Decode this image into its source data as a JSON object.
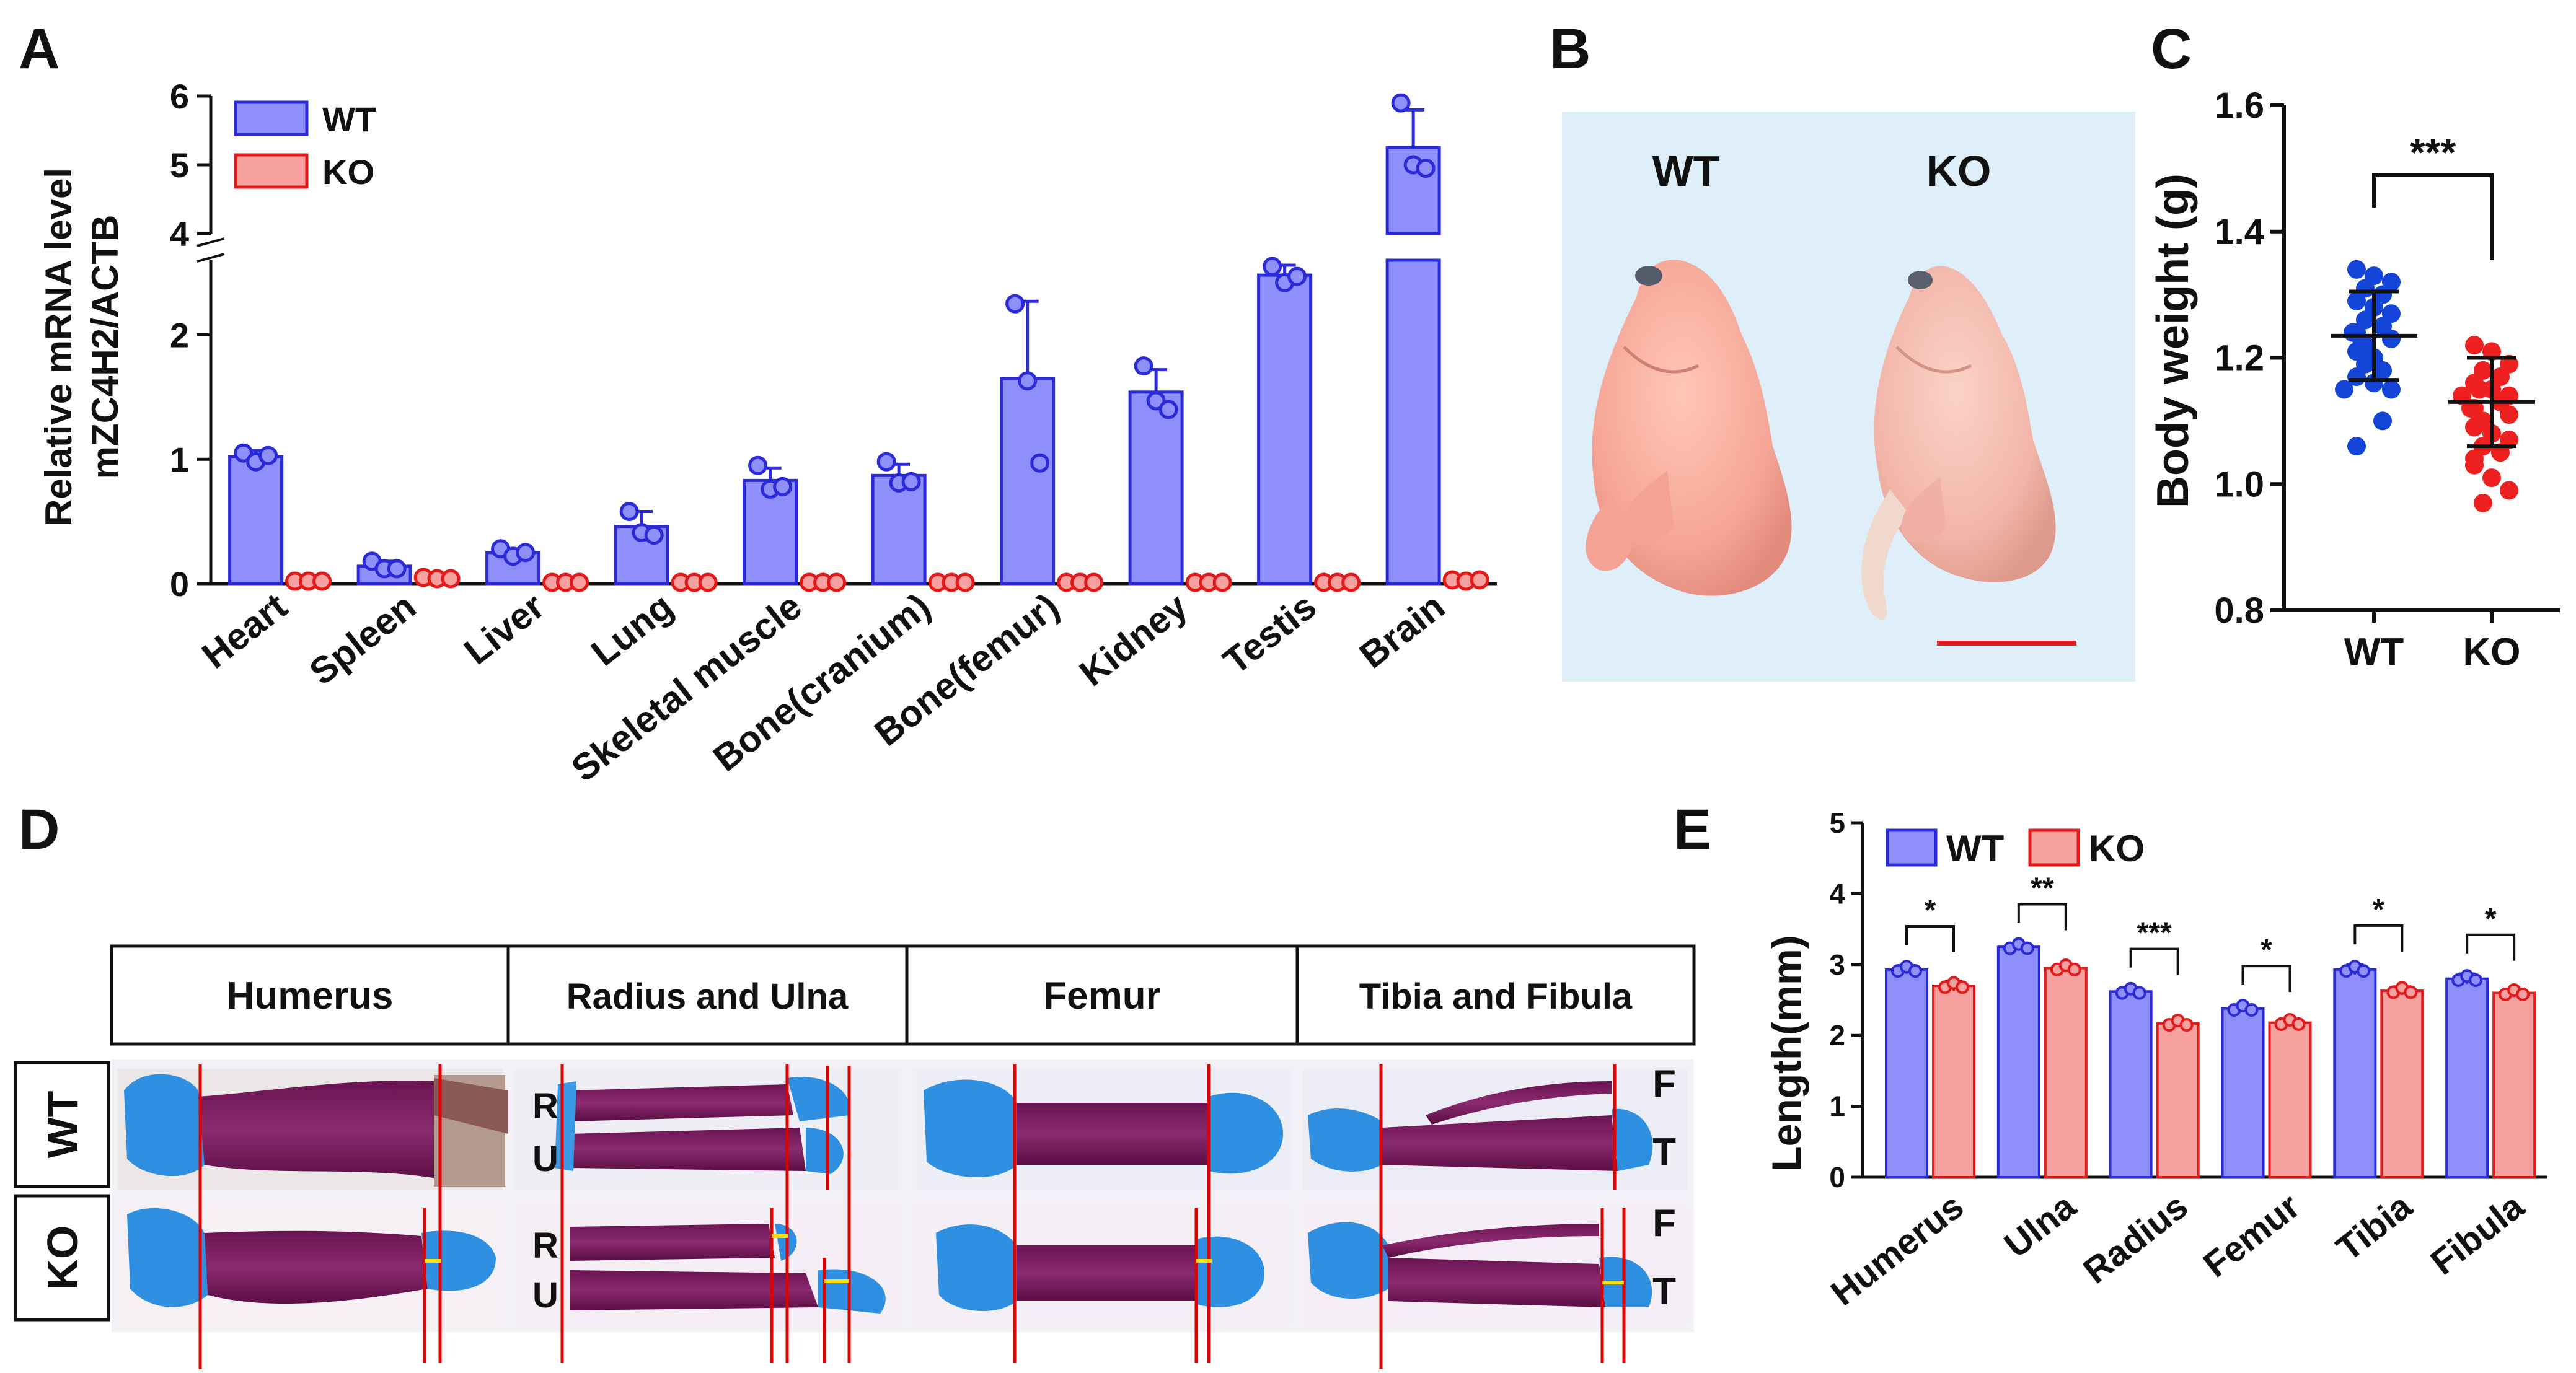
{
  "panel_labels": {
    "a": "A",
    "b": "B",
    "c": "C",
    "d": "D",
    "e": "E"
  },
  "colors": {
    "wt_fill": "#8f8ffb",
    "wt_edge": "#2a2ad8",
    "ko_fill": "#f7a0a0",
    "ko_edge": "#e41a1a",
    "scale_bar": "#e02020",
    "cut_line": "#e00000",
    "growth_plate_mark": "#ffe000"
  },
  "photo_b": {
    "wt_label": "WT",
    "ko_label": "KO"
  },
  "photo_d": {
    "columns": [
      "Humerus",
      "Radius and Ulna",
      "Femur",
      "Tibia and Fibula"
    ],
    "rows": [
      "WT",
      "KO"
    ],
    "ru_labels": [
      "R",
      "U",
      "R",
      "U"
    ],
    "ft_labels": [
      "F",
      "T",
      "F",
      "T"
    ]
  },
  "chart_data": [
    {
      "id": "A",
      "type": "bar",
      "ylabel_lines": [
        "Relative mRNA level",
        "mZC4H2/ACTB"
      ],
      "ylim_lower": [
        0,
        2.6
      ],
      "ylim_upper": [
        4,
        6
      ],
      "yticks_lower": [
        "0",
        "1",
        "2"
      ],
      "yticks_upper": [
        "4",
        "5",
        "6"
      ],
      "categories": [
        "Heart",
        "Spleen",
        "Liver",
        "Lung",
        "Skeletal muscle",
        "Bone(cranium)",
        "Bone(femur)",
        "Kidney",
        "Testis",
        "Brain"
      ],
      "legend": [
        "WT",
        "KO"
      ],
      "series": [
        {
          "name": "WT",
          "values": [
            1.02,
            0.14,
            0.25,
            0.46,
            0.83,
            0.87,
            1.65,
            1.54,
            2.48,
            5.25
          ],
          "sd": [
            0.05,
            0.04,
            0.03,
            0.12,
            0.1,
            0.09,
            0.62,
            0.18,
            0.08,
            0.55
          ],
          "points": [
            [
              1.05,
              0.98,
              1.03
            ],
            [
              0.18,
              0.12,
              0.12
            ],
            [
              0.28,
              0.22,
              0.25
            ],
            [
              0.58,
              0.41,
              0.39
            ],
            [
              0.95,
              0.76,
              0.78
            ],
            [
              0.98,
              0.81,
              0.82
            ],
            [
              2.25,
              1.63,
              0.97
            ],
            [
              1.75,
              1.47,
              1.4
            ],
            [
              2.55,
              2.42,
              2.47
            ],
            [
              5.9,
              5.0,
              4.95
            ]
          ]
        },
        {
          "name": "KO",
          "values": [
            0.02,
            0.04,
            0.01,
            0.01,
            0.01,
            0.01,
            0.01,
            0.01,
            0.01,
            0.02
          ],
          "points": [
            [
              0.02,
              0.02,
              0.02
            ],
            [
              0.05,
              0.04,
              0.04
            ],
            [
              0.01,
              0.01,
              0.01
            ],
            [
              0.01,
              0.01,
              0.01
            ],
            [
              0.01,
              0.01,
              0.01
            ],
            [
              0.01,
              0.01,
              0.01
            ],
            [
              0.01,
              0.01,
              0.01
            ],
            [
              0.01,
              0.01,
              0.01
            ],
            [
              0.01,
              0.01,
              0.01
            ],
            [
              0.03,
              0.02,
              0.03
            ]
          ]
        }
      ]
    },
    {
      "id": "C",
      "type": "scatter",
      "ylabel": "Body weight (g)",
      "ylim": [
        0.8,
        1.6
      ],
      "yticks": [
        "0.8",
        "1.0",
        "1.2",
        "1.4",
        "1.6"
      ],
      "categories": [
        "WT",
        "KO"
      ],
      "significance": "***",
      "series": [
        {
          "name": "WT",
          "mean": 1.235,
          "sd": 0.07,
          "points": [
            1.34,
            1.33,
            1.32,
            1.31,
            1.3,
            1.29,
            1.28,
            1.27,
            1.26,
            1.25,
            1.24,
            1.24,
            1.23,
            1.22,
            1.22,
            1.21,
            1.2,
            1.2,
            1.19,
            1.18,
            1.17,
            1.16,
            1.15,
            1.15,
            1.1,
            1.06
          ]
        },
        {
          "name": "KO",
          "mean": 1.13,
          "sd": 0.07,
          "points": [
            1.22,
            1.21,
            1.19,
            1.18,
            1.17,
            1.16,
            1.15,
            1.14,
            1.14,
            1.13,
            1.12,
            1.12,
            1.11,
            1.1,
            1.1,
            1.09,
            1.08,
            1.07,
            1.06,
            1.05,
            1.03,
            1.01,
            0.99,
            0.97,
            1.15,
            1.04
          ]
        }
      ]
    },
    {
      "id": "E",
      "type": "bar",
      "ylabel": "Length(mm)",
      "ylim": [
        0,
        5
      ],
      "yticks": [
        "0",
        "1",
        "2",
        "3",
        "4",
        "5"
      ],
      "categories": [
        "Humerus",
        "Ulna",
        "Radius",
        "Femur",
        "Tibia",
        "Fibula"
      ],
      "legend": [
        "WT",
        "KO"
      ],
      "significance": [
        "*",
        "**",
        "***",
        "*",
        "*",
        "*"
      ],
      "series": [
        {
          "name": "WT",
          "values": [
            2.93,
            3.25,
            2.62,
            2.38,
            2.93,
            2.8
          ],
          "sd": [
            0.06,
            0.05,
            0.05,
            0.05,
            0.07,
            0.07
          ]
        },
        {
          "name": "KO",
          "values": [
            2.7,
            2.95,
            2.17,
            2.18,
            2.63,
            2.6
          ],
          "sd": [
            0.07,
            0.05,
            0.05,
            0.05,
            0.06,
            0.05
          ]
        }
      ]
    }
  ]
}
